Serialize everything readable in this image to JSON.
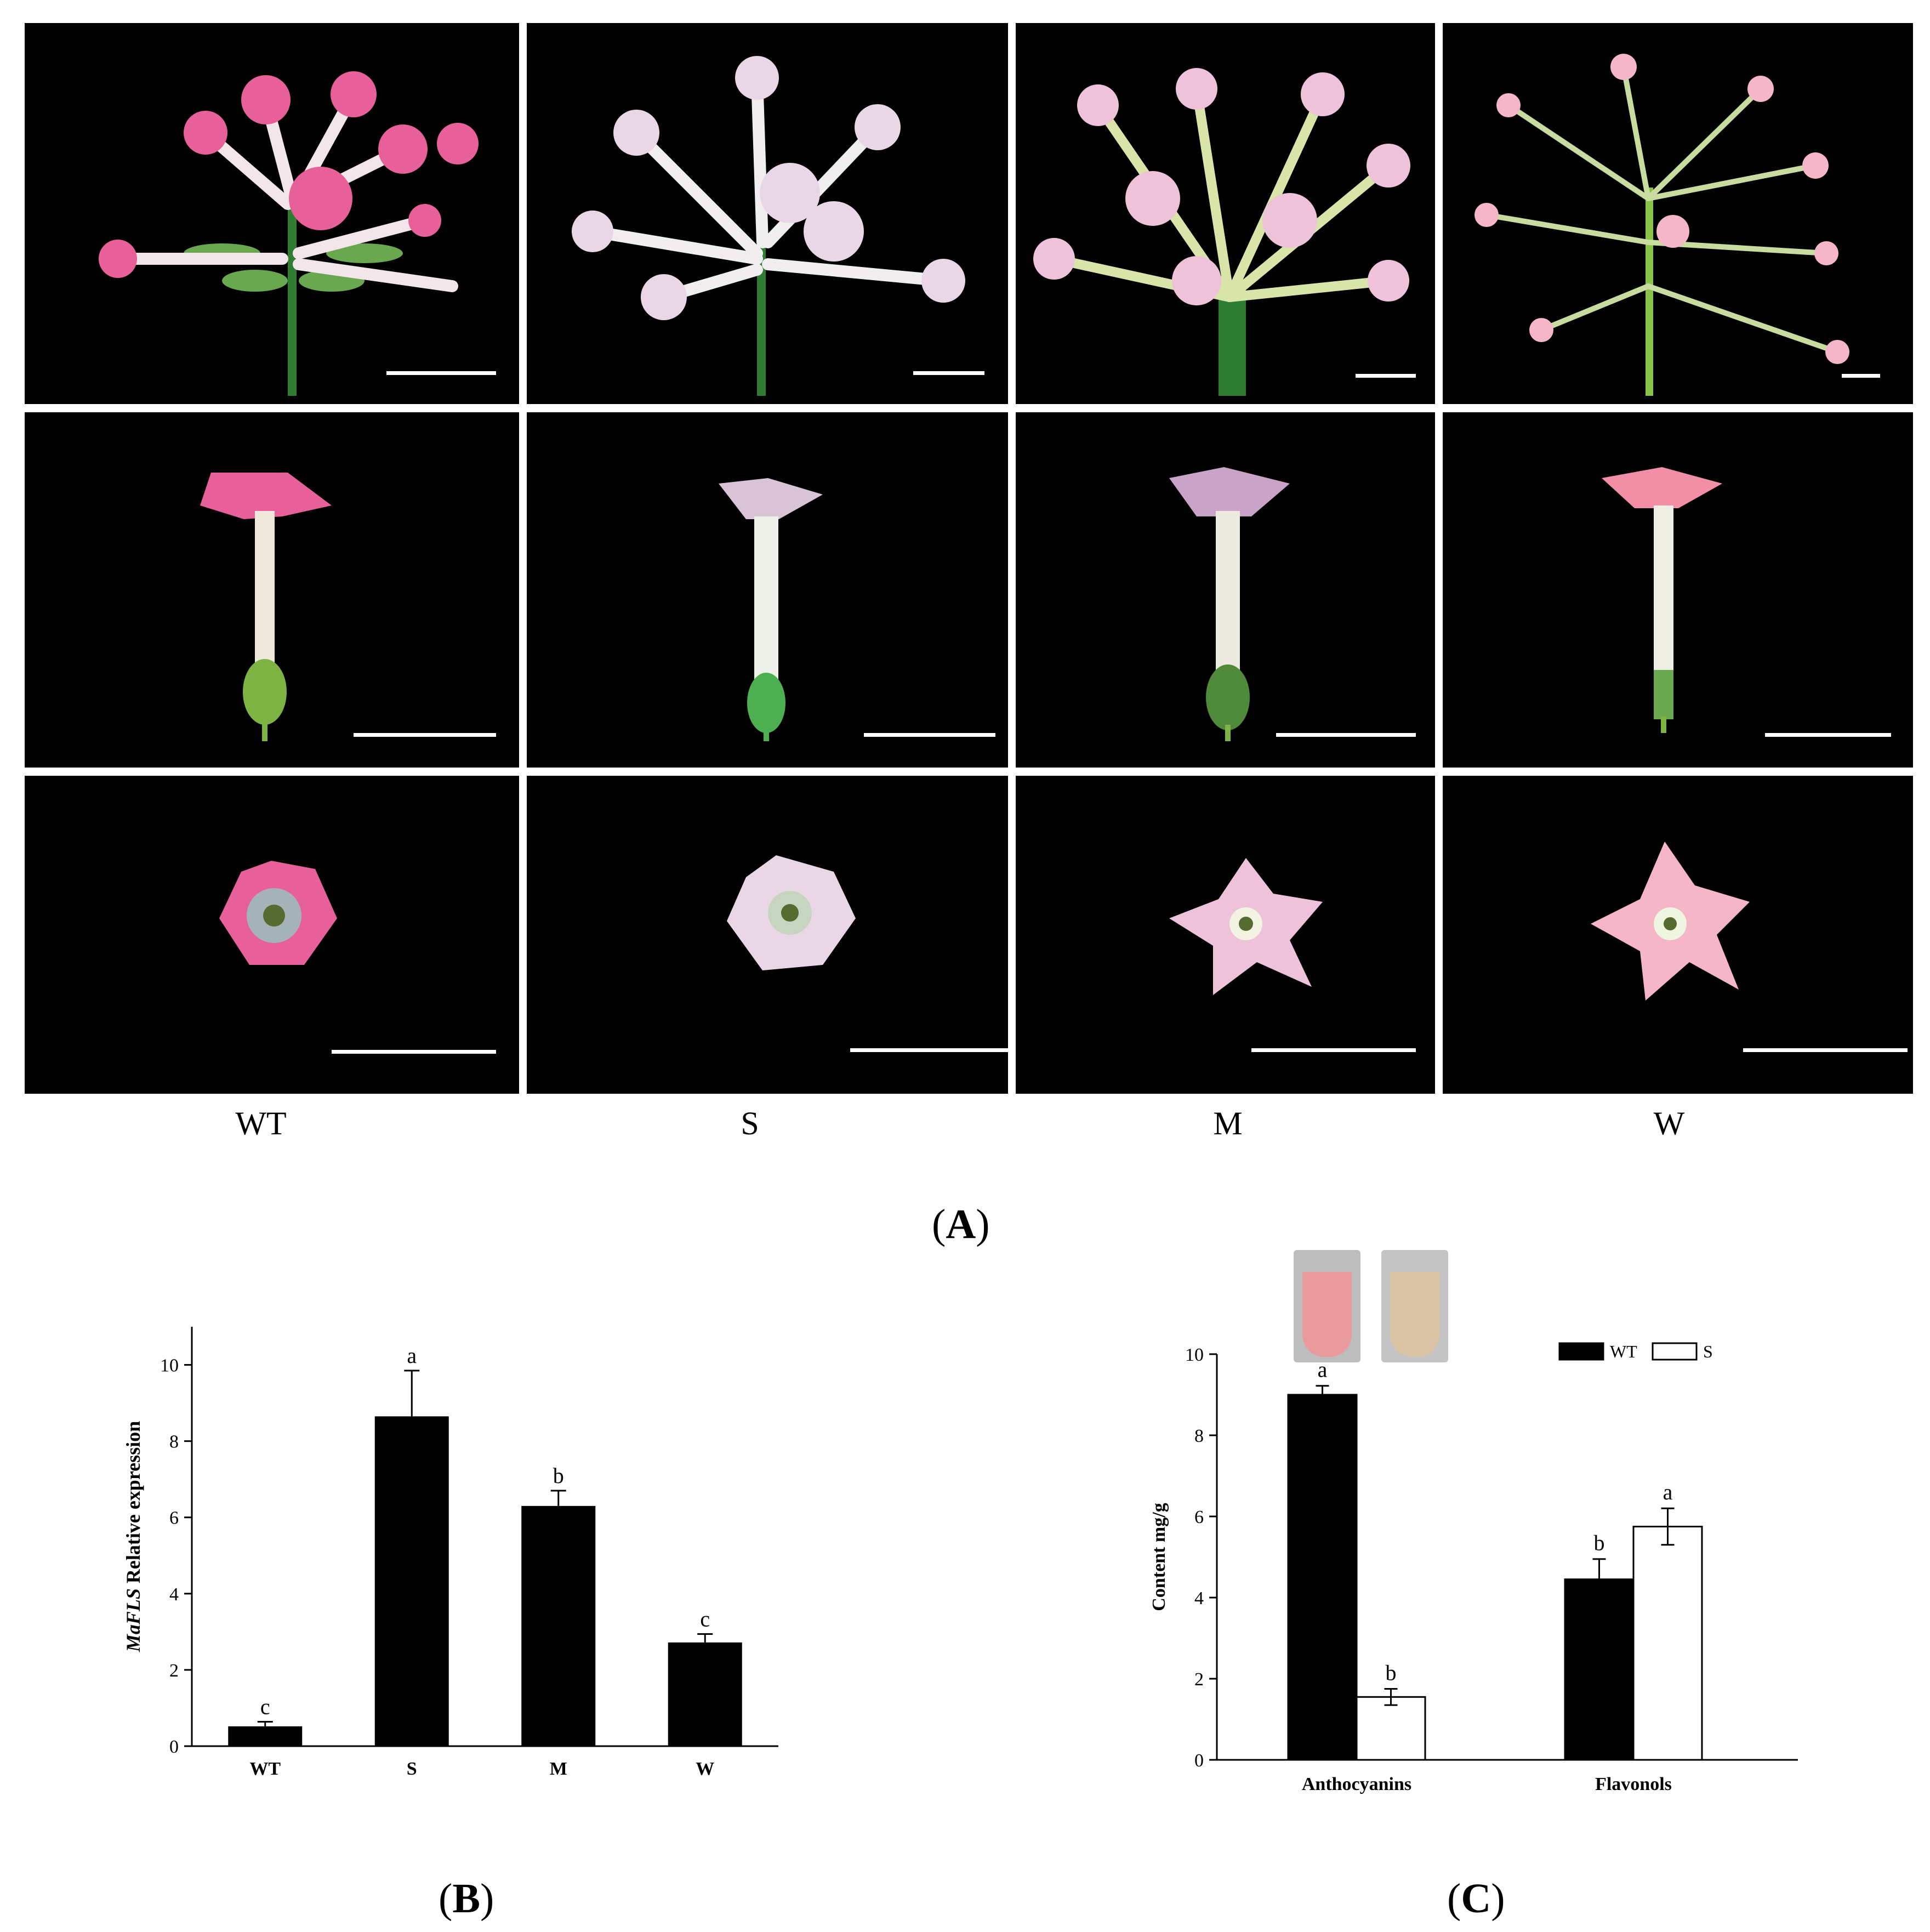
{
  "panel_a": {
    "label_letter": "A",
    "columns": [
      "WT",
      "S",
      "M",
      "W"
    ],
    "rows": [
      "inflorescence",
      "flower-side",
      "flower-top"
    ],
    "flower_colors": {
      "WT": "#e8609a",
      "S": "#e9d7e6",
      "M": "#eec2d8",
      "W": "#f5b7c8"
    }
  },
  "panel_b": {
    "label_letter": "B",
    "ylabel_italic": "MaFLS",
    "ylabel_rest": " Relative expression"
  },
  "panel_c": {
    "label_letter": "C",
    "ylabel": "Content  mg/g",
    "legend": [
      "WT",
      "S"
    ],
    "tube_colors": [
      "#e89a9c",
      "#d9c4a5"
    ]
  },
  "chart_data": [
    {
      "id": "B",
      "type": "bar",
      "categories": [
        "WT",
        "S",
        "M",
        "W"
      ],
      "values": [
        0.52,
        8.65,
        6.3,
        2.72
      ],
      "errors": [
        0.12,
        1.2,
        0.4,
        0.22
      ],
      "letters": [
        "c",
        "a",
        "b",
        "c"
      ],
      "ylim": [
        0,
        11
      ],
      "yticks": [
        0,
        2,
        4,
        6,
        8,
        10
      ],
      "ylabel": "MaFLS Relative expression",
      "bar_color": "#000000"
    },
    {
      "id": "C",
      "type": "bar",
      "categories": [
        "Anthocyanins",
        "Flavonols"
      ],
      "series": [
        {
          "name": "WT",
          "values": [
            9.0,
            4.45
          ],
          "errors": [
            0.22,
            0.5
          ],
          "letters": [
            "a",
            "b"
          ],
          "fill": "#000000"
        },
        {
          "name": "S",
          "values": [
            1.55,
            5.75
          ],
          "errors": [
            0.2,
            0.45
          ],
          "letters": [
            "b",
            "a"
          ],
          "fill": "#ffffff"
        }
      ],
      "ylim": [
        0,
        10
      ],
      "yticks": [
        0,
        2,
        4,
        6,
        8,
        10
      ],
      "ylabel": "Content  mg/g",
      "legend_position": "top-right"
    }
  ]
}
